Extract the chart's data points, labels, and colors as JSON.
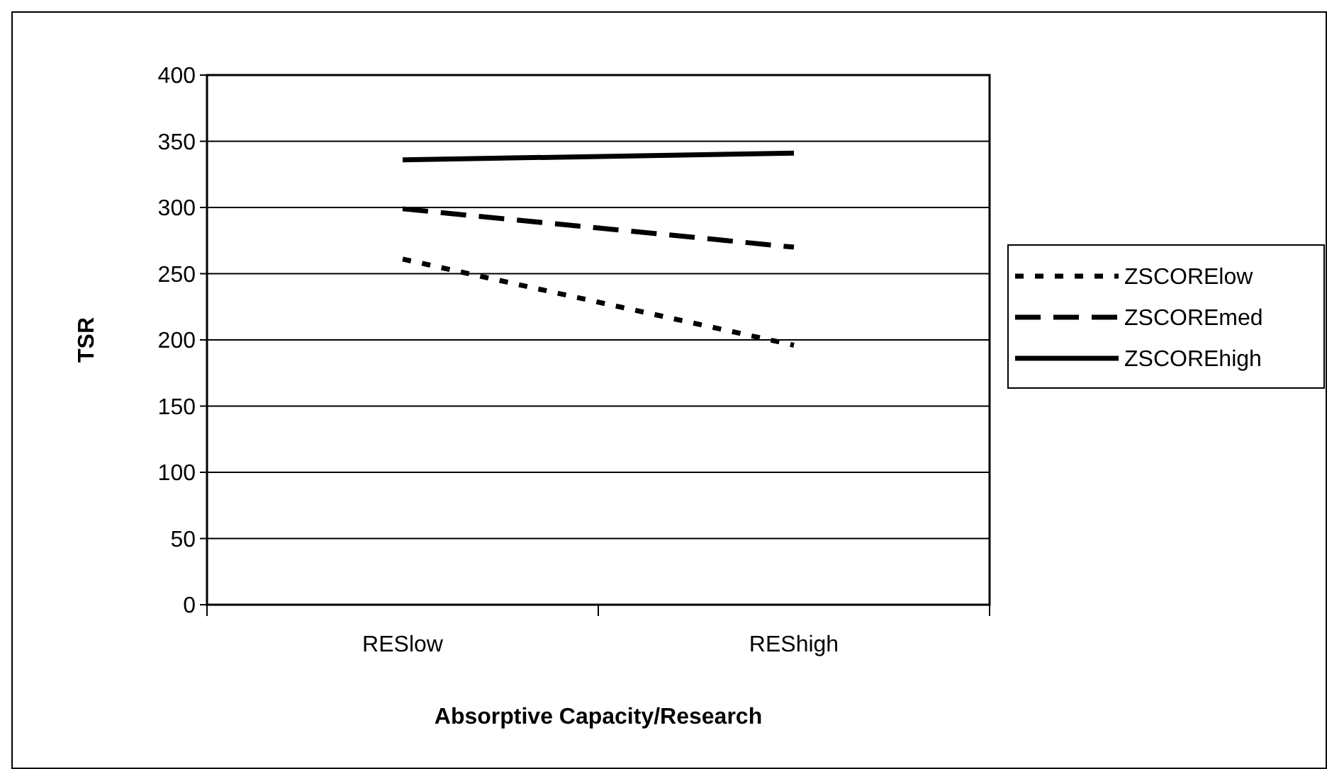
{
  "chart_data": {
    "type": "line",
    "xlabel": "Absorptive Capacity/Research",
    "ylabel": "TSR",
    "categories": [
      "RESlow",
      "REShigh"
    ],
    "series": [
      {
        "name": "ZSCORElow",
        "color": "#000000",
        "values": [
          261,
          196
        ],
        "line_style": "dotted"
      },
      {
        "name": "ZSCOREmed",
        "color": "#000000",
        "values": [
          299,
          270
        ],
        "line_style": "dashed"
      },
      {
        "name": "ZSCOREhigh",
        "color": "#000000",
        "values": [
          336,
          341
        ],
        "line_style": "solid"
      }
    ],
    "ylim": [
      0,
      400
    ],
    "yticks": [
      0,
      50,
      100,
      150,
      200,
      250,
      300,
      350,
      400
    ],
    "grid": "y",
    "legend": "right"
  }
}
